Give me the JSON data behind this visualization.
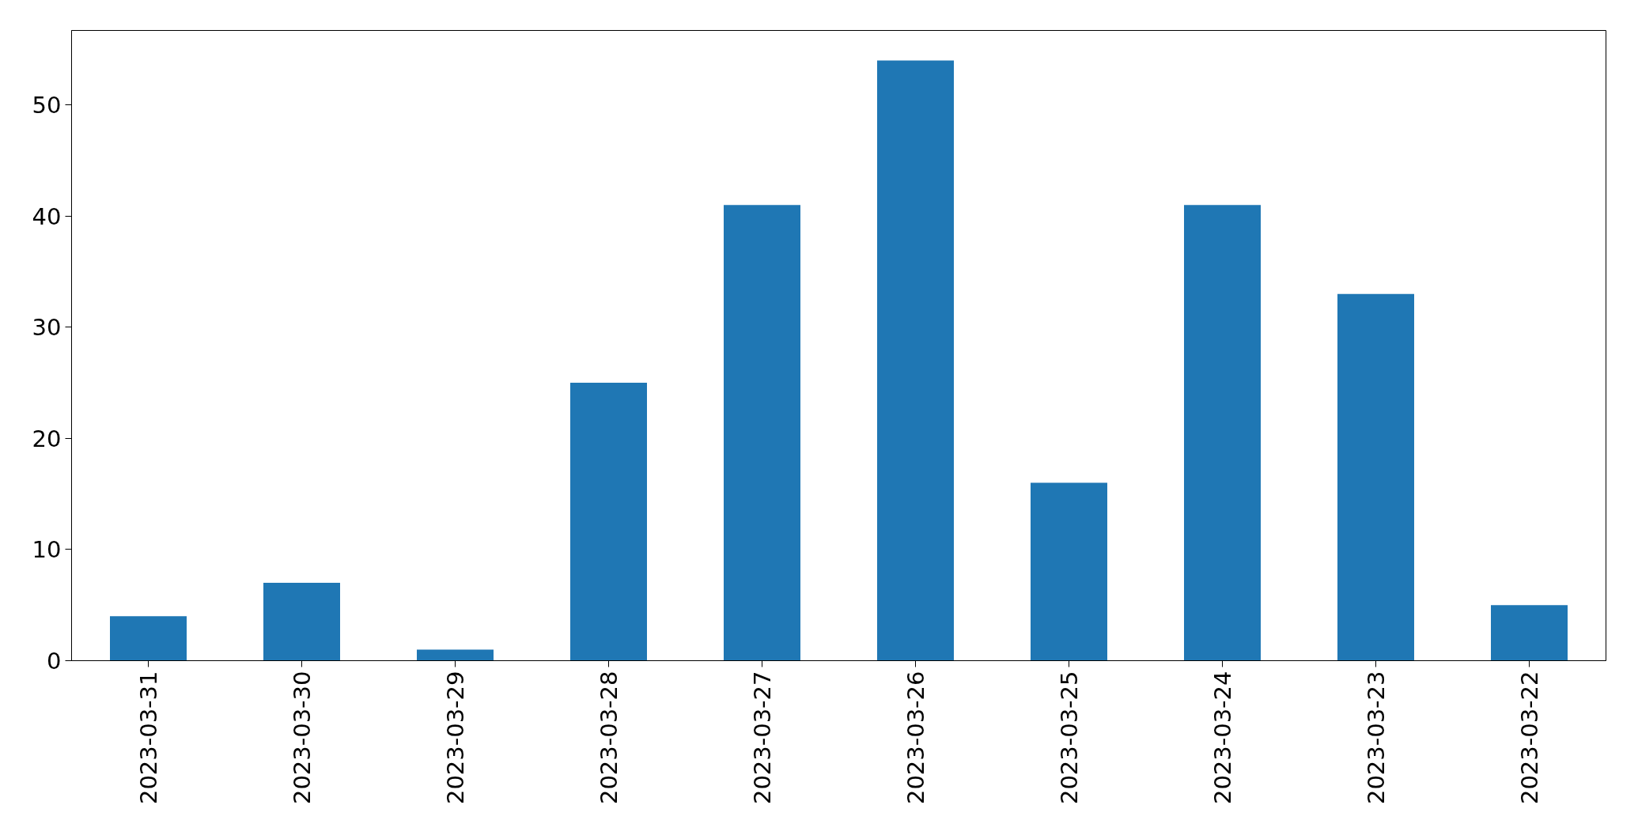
{
  "chart_data": {
    "type": "bar",
    "categories": [
      "2023-03-31",
      "2023-03-30",
      "2023-03-29",
      "2023-03-28",
      "2023-03-27",
      "2023-03-26",
      "2023-03-25",
      "2023-03-24",
      "2023-03-23",
      "2023-03-22"
    ],
    "values": [
      4,
      7,
      1,
      25,
      41,
      54,
      16,
      41,
      33,
      5
    ],
    "color": "#1f77b4",
    "ylim": [
      0,
      56.7
    ],
    "yticks": [
      0,
      10,
      20,
      30,
      40,
      50
    ],
    "grid": false
  }
}
